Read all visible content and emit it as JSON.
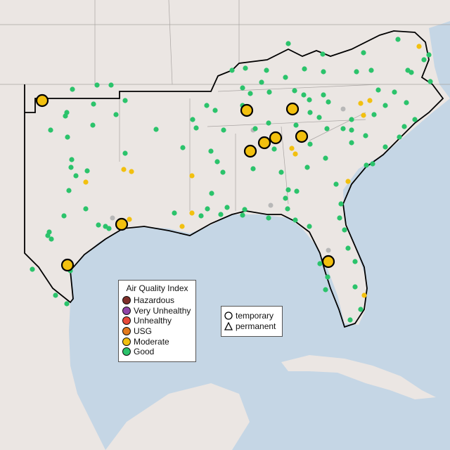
{
  "map": {
    "colors": {
      "land": "#ebe6e3",
      "water": "#c5d6e5",
      "outline": "#000000"
    }
  },
  "aqi_legend": {
    "title": "Air Quality Index",
    "items": [
      {
        "label": "Hazardous",
        "color": "#7e2f2a"
      },
      {
        "label": "Very Unhealthy",
        "color": "#8f45a8"
      },
      {
        "label": "Unhealthy",
        "color": "#e84a3a"
      },
      {
        "label": "USG",
        "color": "#e47a1d"
      },
      {
        "label": "Moderate",
        "color": "#f2c00f"
      },
      {
        "label": "Good",
        "color": "#2bc36b"
      }
    ],
    "no_data_color": "#b8b8b8"
  },
  "type_legend": {
    "items": [
      {
        "label": "temporary",
        "icon": "circle-icon"
      },
      {
        "label": "permanent",
        "icon": "triangle-icon"
      }
    ]
  }
}
